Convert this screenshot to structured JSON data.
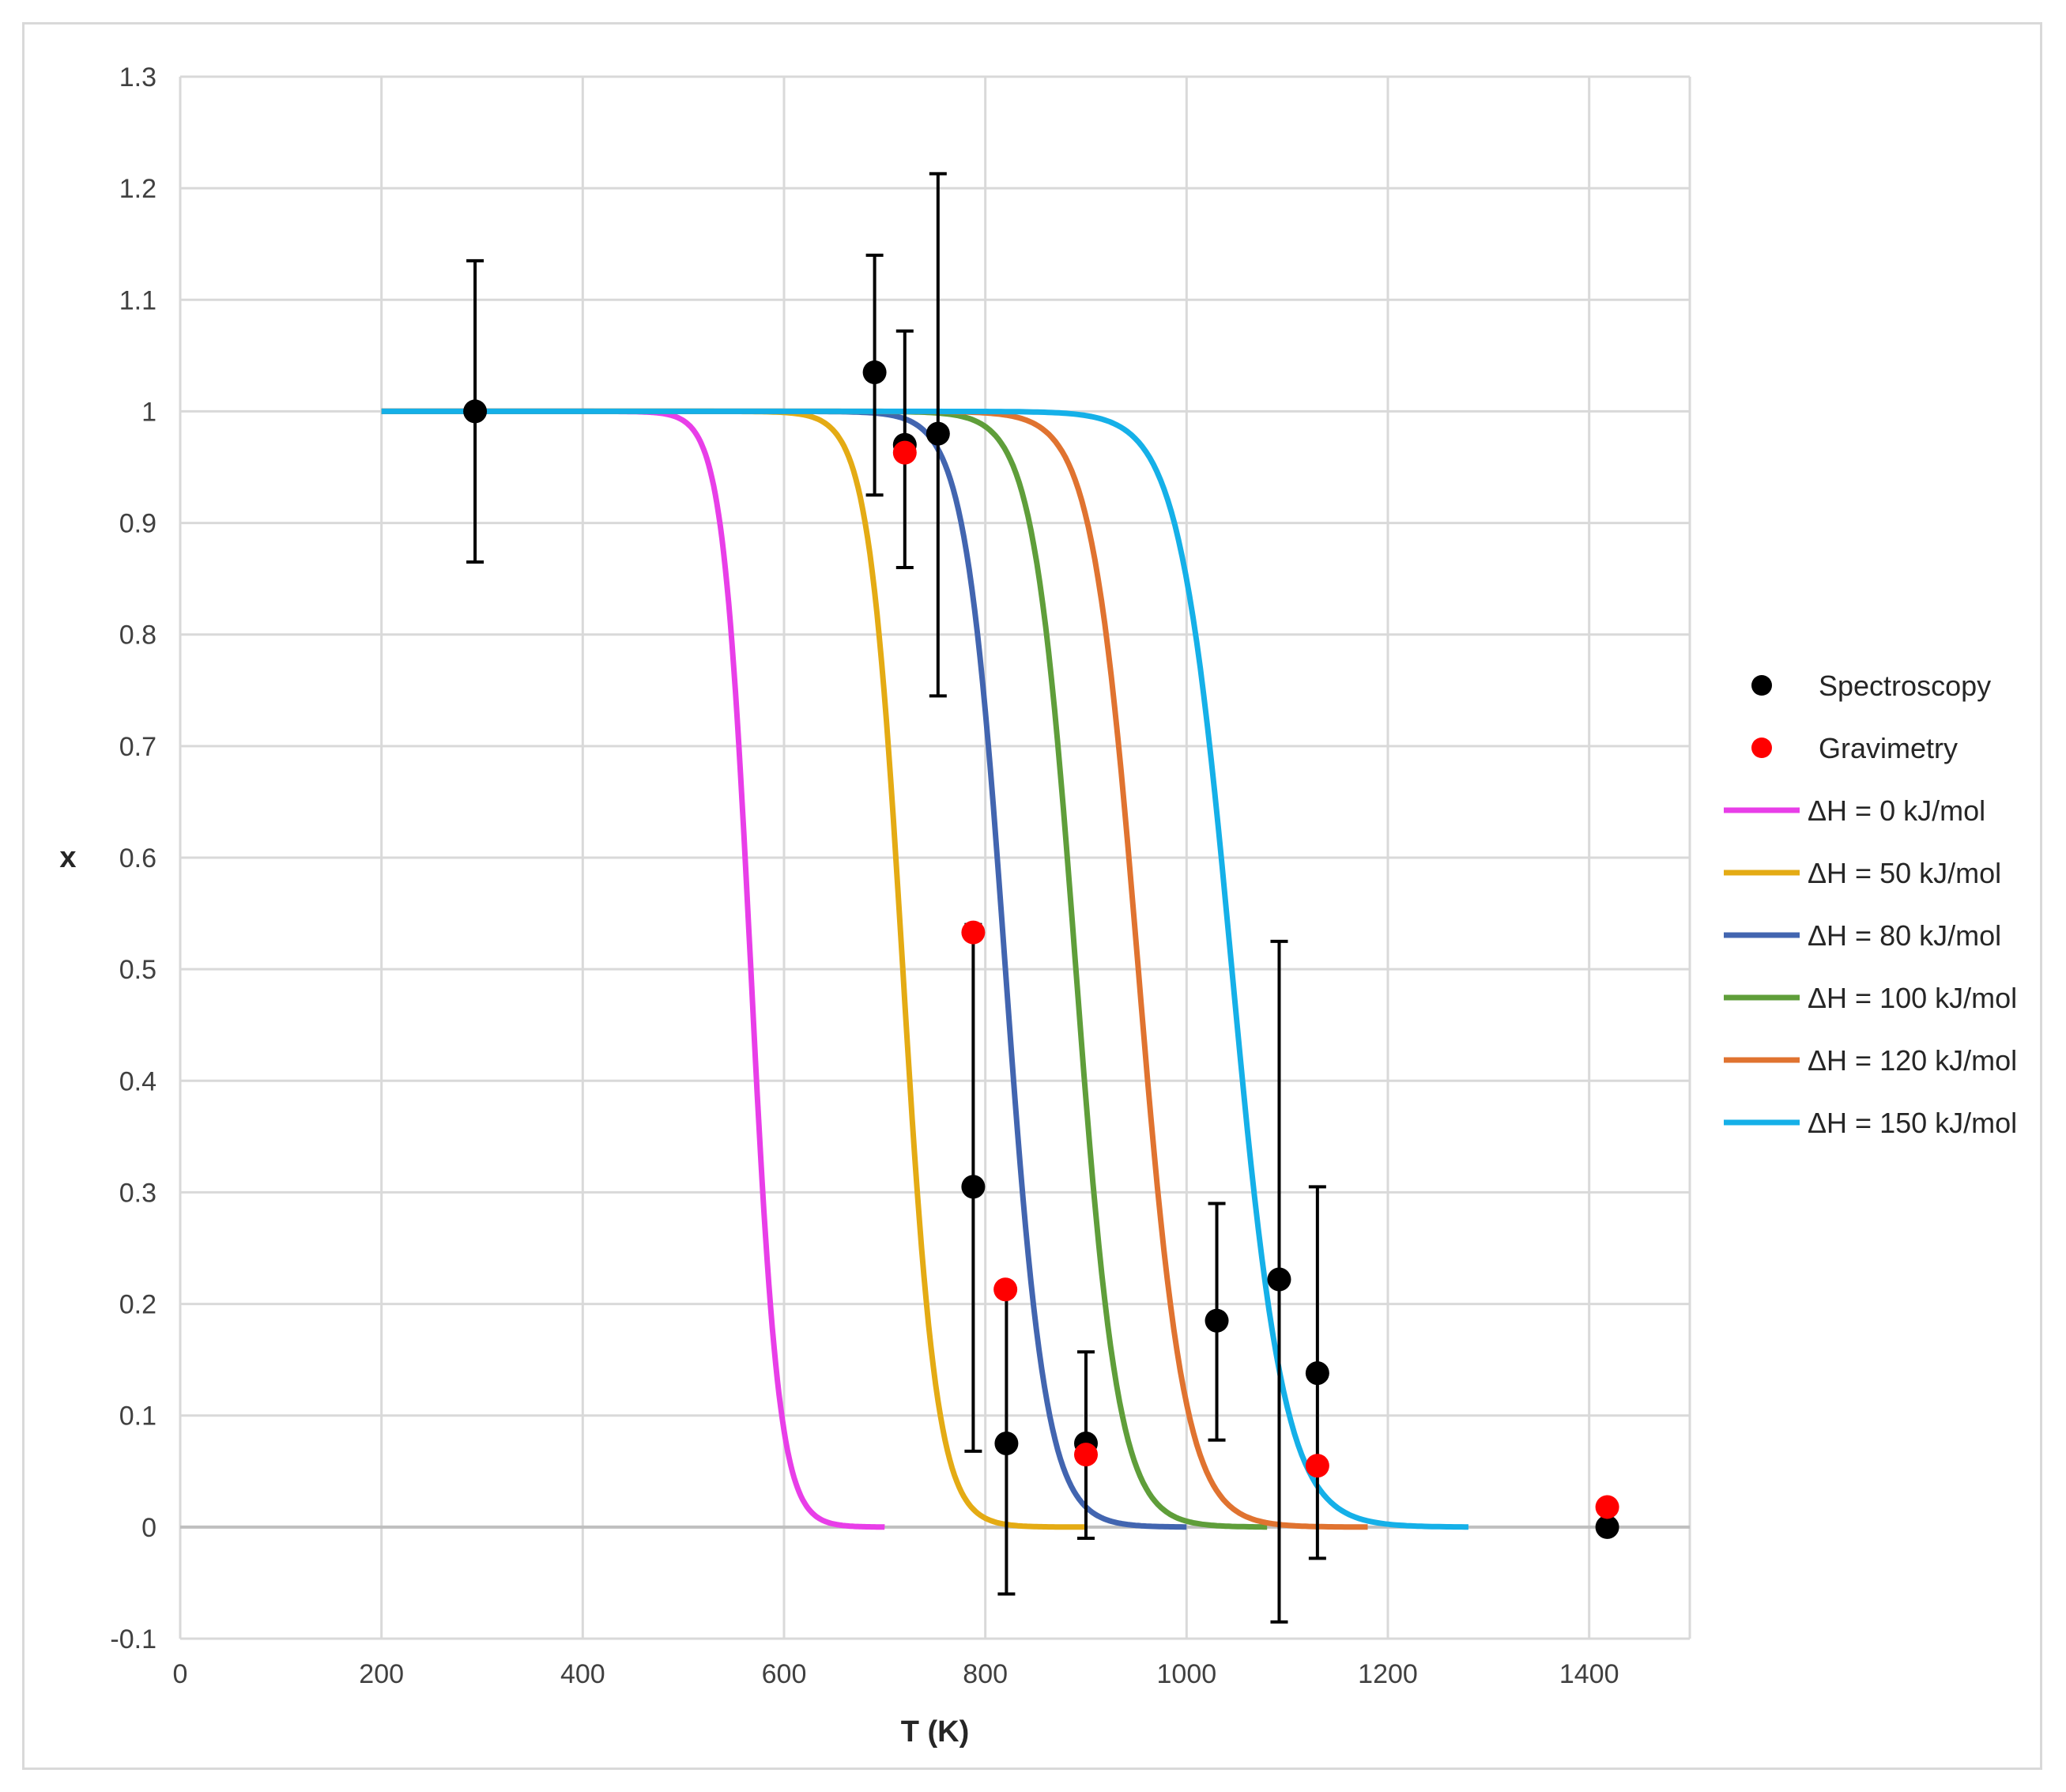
{
  "chart_data": {
    "type": "scatter",
    "title": "",
    "xlabel": "T (K)",
    "ylabel": "x",
    "xlim": [
      0,
      1500
    ],
    "ylim": [
      -0.1,
      1.3
    ],
    "x_ticks": [
      0,
      200,
      400,
      600,
      800,
      1000,
      1200,
      1400
    ],
    "y_ticks": [
      -0.1,
      0,
      0.1,
      0.2,
      0.3,
      0.4,
      0.5,
      0.6,
      0.7,
      0.8,
      0.9,
      1,
      1.1,
      1.2,
      1.3
    ],
    "y_tick_labels": [
      "-0.1",
      "0",
      "0.1",
      "0.2",
      "0.3",
      "0.4",
      "0.5",
      "0.6",
      "0.7",
      "0.8",
      "0.9",
      "1",
      "1.1",
      "1.2",
      "1.3"
    ],
    "grid": true,
    "legend_position": "right",
    "series": [
      {
        "name": "Spectroscopy",
        "kind": "points",
        "color": "#000000",
        "points": [
          {
            "x": 293,
            "y": 1.0,
            "err_low": 0.865,
            "err_high": 1.135
          },
          {
            "x": 690,
            "y": 1.035,
            "err_low": 0.925,
            "err_high": 1.14
          },
          {
            "x": 720,
            "y": 0.97,
            "err_low": 0.86,
            "err_high": 1.072
          },
          {
            "x": 753,
            "y": 0.98,
            "err_low": 0.745,
            "err_high": 1.213
          },
          {
            "x": 788,
            "y": 0.305,
            "err_low": 0.068,
            "err_high": 0.54
          },
          {
            "x": 821,
            "y": 0.075,
            "err_low": -0.06,
            "err_high": 0.21
          },
          {
            "x": 900,
            "y": 0.075,
            "err_low": -0.01,
            "err_high": 0.157
          },
          {
            "x": 1030,
            "y": 0.185,
            "err_low": 0.078,
            "err_high": 0.29
          },
          {
            "x": 1092,
            "y": 0.222,
            "err_low": -0.085,
            "err_high": 0.525
          },
          {
            "x": 1130,
            "y": 0.138,
            "err_low": -0.028,
            "err_high": 0.305
          },
          {
            "x": 1418,
            "y": 0.0
          }
        ]
      },
      {
        "name": "Gravimetry",
        "kind": "points",
        "color": "#ff0000",
        "points": [
          {
            "x": 720,
            "y": 0.963
          },
          {
            "x": 788,
            "y": 0.533
          },
          {
            "x": 820,
            "y": 0.213
          },
          {
            "x": 900,
            "y": 0.065
          },
          {
            "x": 1130,
            "y": 0.055
          },
          {
            "x": 1418,
            "y": 0.018
          }
        ]
      },
      {
        "name": "ΔH = 0 kJ/mol",
        "kind": "curve",
        "color": "#e83ee8",
        "x_start": 200,
        "x_end": 700,
        "midpoint": 567,
        "width": 14
      },
      {
        "name": "ΔH = 50 kJ/mol",
        "kind": "curve",
        "color": "#e4ab14",
        "x_start": 200,
        "x_end": 900,
        "midpoint": 718,
        "width": 17
      },
      {
        "name": "ΔH = 80 kJ/mol",
        "kind": "curve",
        "color": "#4265b0",
        "x_start": 200,
        "x_end": 1000,
        "midpoint": 820,
        "width": 20
      },
      {
        "name": "ΔH = 100 kJ/mol",
        "kind": "curve",
        "color": "#5f9e3a",
        "x_start": 200,
        "x_end": 1080,
        "midpoint": 890,
        "width": 21
      },
      {
        "name": "ΔH = 120 kJ/mol",
        "kind": "curve",
        "color": "#e07330",
        "x_start": 200,
        "x_end": 1180,
        "midpoint": 952,
        "width": 23
      },
      {
        "name": "ΔH = 150 kJ/mol",
        "kind": "curve",
        "color": "#15b0e8",
        "x_start": 200,
        "x_end": 1280,
        "midpoint": 1045,
        "width": 26
      }
    ]
  }
}
